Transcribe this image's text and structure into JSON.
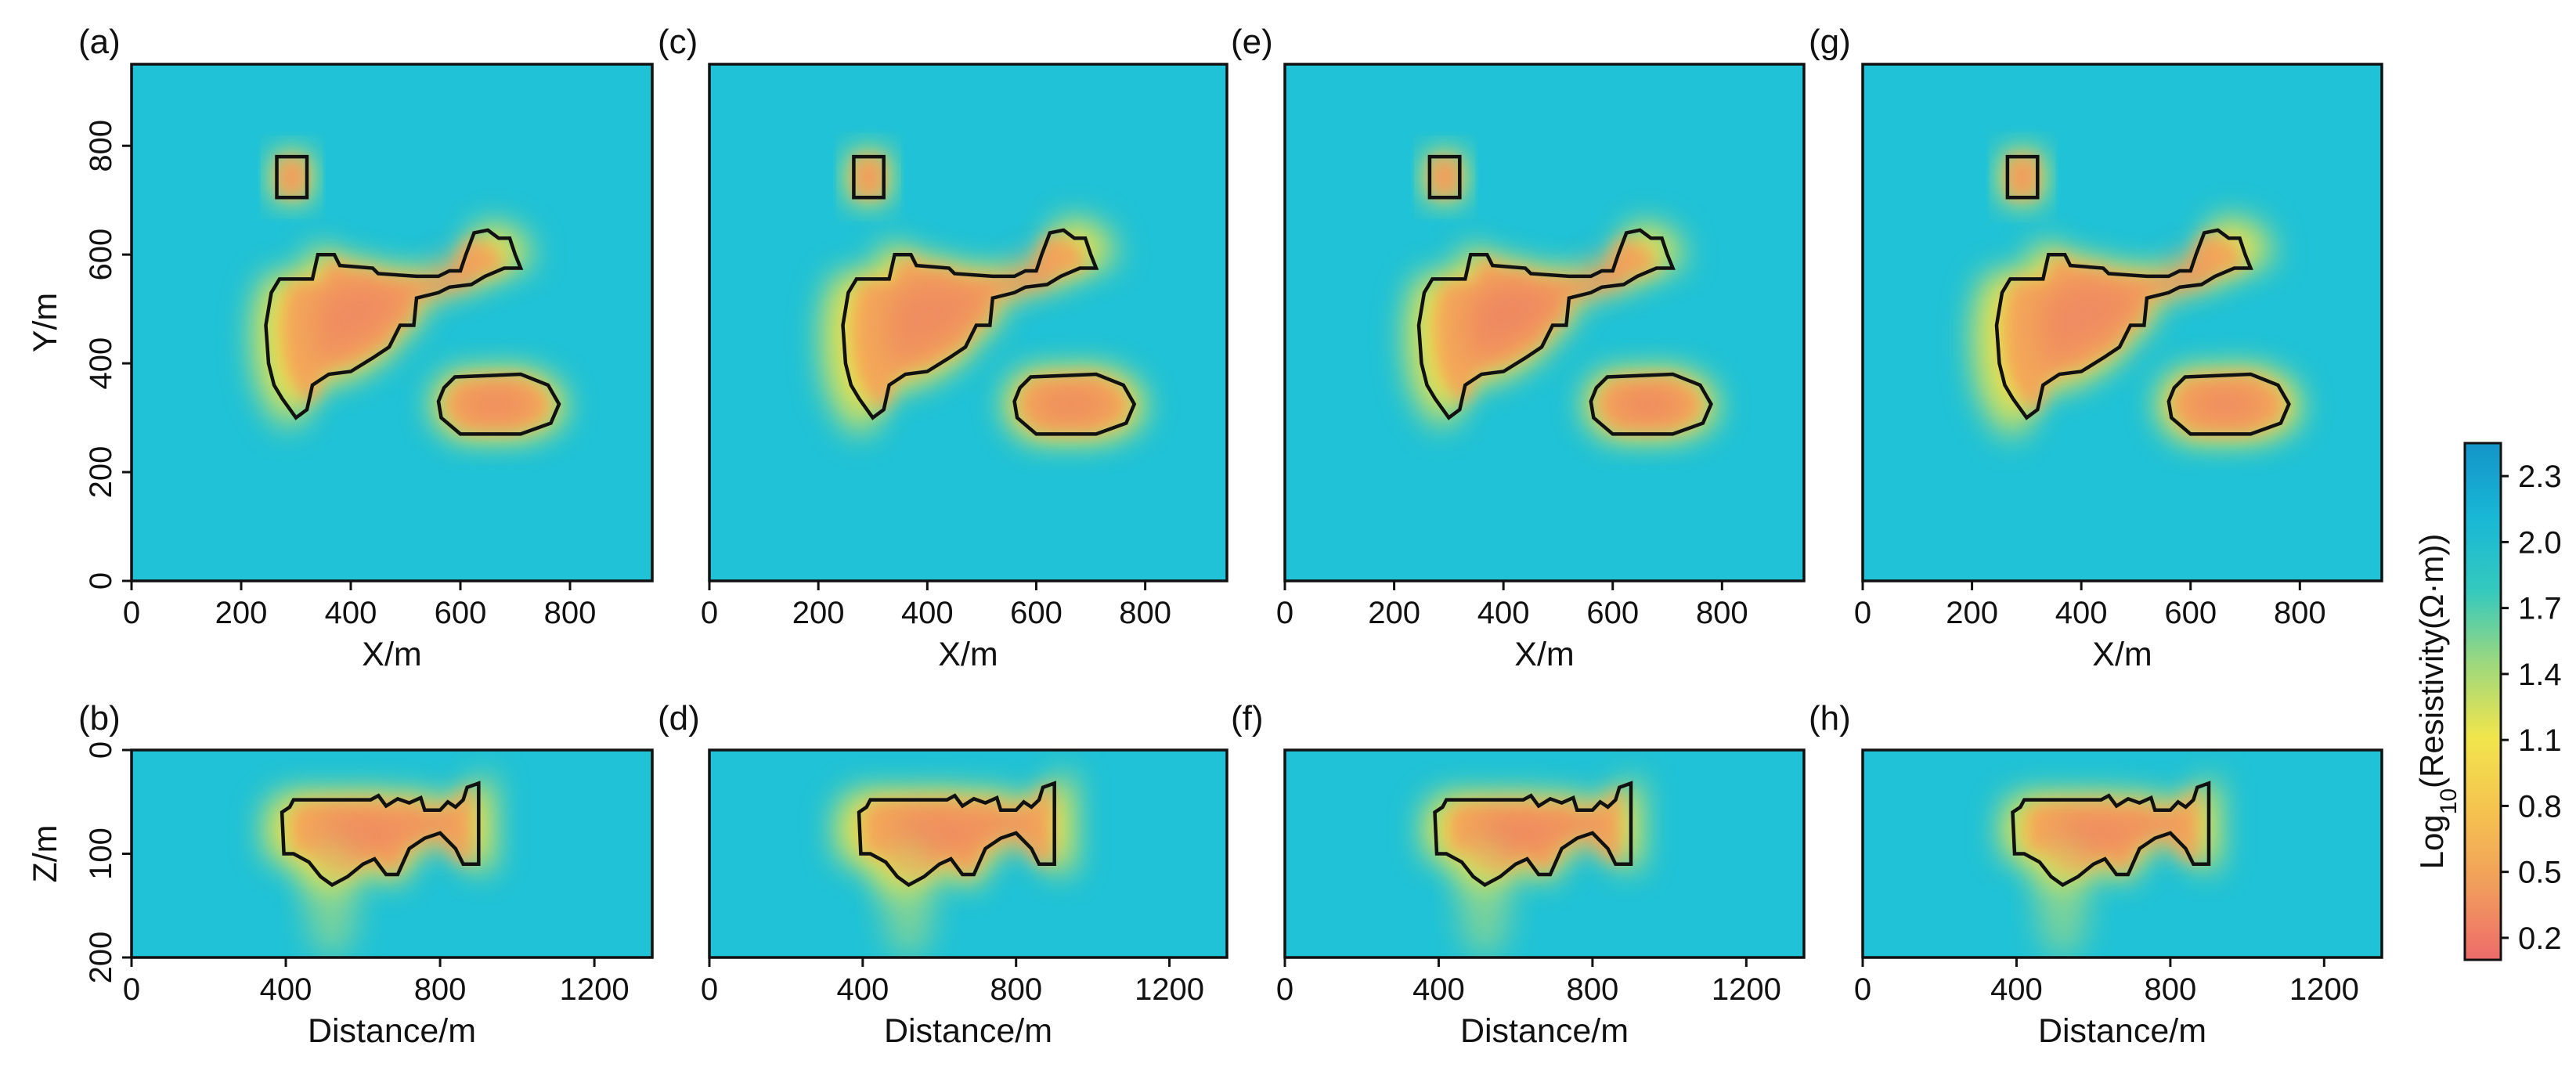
{
  "chart_data": [
    {
      "type": "heatmap",
      "panel": "(a)",
      "xlabel": "X/m",
      "ylabel": "Y/m",
      "xlim": [
        0,
        950
      ],
      "ylim": [
        0,
        950
      ],
      "xticks": [
        "0",
        "200",
        "400",
        "600",
        "800"
      ],
      "yticks": [
        "0",
        "200",
        "400",
        "600",
        "800"
      ],
      "scale": 1.0,
      "anomaly_hotness": 0.55
    },
    {
      "type": "heatmap",
      "panel": "(c)",
      "xlabel": "X/m",
      "ylabel": "",
      "xlim": [
        0,
        950
      ],
      "ylim": [
        0,
        950
      ],
      "xticks": [
        "0",
        "200",
        "400",
        "600",
        "800"
      ],
      "yticks": [],
      "scale": 1.06,
      "anomaly_hotness": 0.5
    },
    {
      "type": "heatmap",
      "panel": "(e)",
      "xlabel": "X/m",
      "ylabel": "",
      "xlim": [
        0,
        950
      ],
      "ylim": [
        0,
        950
      ],
      "xticks": [
        "0",
        "200",
        "400",
        "600",
        "800"
      ],
      "yticks": [],
      "scale": 1.0,
      "anomaly_hotness": 0.6
    },
    {
      "type": "heatmap",
      "panel": "(g)",
      "xlabel": "X/m",
      "ylabel": "",
      "xlim": [
        0,
        950
      ],
      "ylim": [
        0,
        950
      ],
      "xticks": [
        "0",
        "200",
        "400",
        "600",
        "800"
      ],
      "yticks": [],
      "scale": 1.08,
      "anomaly_hotness": 0.55
    },
    {
      "type": "heatmap",
      "panel": "(b)",
      "xlabel": "Distance/m",
      "ylabel": "Z/m",
      "xlim": [
        0,
        1350
      ],
      "ylim": [
        200,
        0
      ],
      "xticks": [
        "0",
        "400",
        "800",
        "1200"
      ],
      "yticks": [
        "0",
        "100",
        "200"
      ],
      "scale": 1.05,
      "anomaly_hotness": 0.55
    },
    {
      "type": "heatmap",
      "panel": "(d)",
      "xlabel": "Distance/m",
      "ylabel": "",
      "xlim": [
        0,
        1350
      ],
      "ylim": [
        200,
        0
      ],
      "xticks": [
        "0",
        "400",
        "800",
        "1200"
      ],
      "yticks": [],
      "scale": 1.1,
      "anomaly_hotness": 0.5
    },
    {
      "type": "heatmap",
      "panel": "(f)",
      "xlabel": "Distance/m",
      "ylabel": "",
      "xlim": [
        0,
        1350
      ],
      "ylim": [
        200,
        0
      ],
      "xticks": [
        "0",
        "400",
        "800",
        "1200"
      ],
      "yticks": [],
      "scale": 1.0,
      "anomaly_hotness": 0.6
    },
    {
      "type": "heatmap",
      "panel": "(h)",
      "xlabel": "Distance/m",
      "ylabel": "",
      "xlim": [
        0,
        1350
      ],
      "ylim": [
        200,
        0
      ],
      "xticks": [
        "0",
        "400",
        "800",
        "1200"
      ],
      "yticks": [],
      "scale": 1.0,
      "anomaly_hotness": 0.55
    }
  ],
  "anomalies_plan": {
    "small_block": [
      [
        265,
        780
      ],
      [
        320,
        780
      ],
      [
        320,
        705
      ],
      [
        265,
        705
      ]
    ],
    "main_body": [
      [
        255,
        530
      ],
      [
        270,
        555
      ],
      [
        330,
        555
      ],
      [
        340,
        600
      ],
      [
        370,
        600
      ],
      [
        380,
        580
      ],
      [
        440,
        575
      ],
      [
        450,
        565
      ],
      [
        520,
        560
      ],
      [
        560,
        560
      ],
      [
        580,
        570
      ],
      [
        600,
        570
      ],
      [
        610,
        600
      ],
      [
        625,
        640
      ],
      [
        650,
        645
      ],
      [
        670,
        630
      ],
      [
        690,
        630
      ],
      [
        700,
        600
      ],
      [
        710,
        575
      ],
      [
        680,
        575
      ],
      [
        645,
        560
      ],
      [
        620,
        545
      ],
      [
        580,
        540
      ],
      [
        560,
        530
      ],
      [
        520,
        520
      ],
      [
        515,
        470
      ],
      [
        490,
        470
      ],
      [
        470,
        430
      ],
      [
        440,
        410
      ],
      [
        400,
        385
      ],
      [
        360,
        380
      ],
      [
        330,
        360
      ],
      [
        320,
        315
      ],
      [
        300,
        300
      ],
      [
        275,
        335
      ],
      [
        260,
        360
      ],
      [
        250,
        400
      ],
      [
        245,
        470
      ]
    ],
    "ellipse": [
      [
        570,
        355
      ],
      [
        590,
        375
      ],
      [
        710,
        380
      ],
      [
        760,
        360
      ],
      [
        780,
        325
      ],
      [
        765,
        290
      ],
      [
        710,
        270
      ],
      [
        600,
        270
      ],
      [
        565,
        300
      ],
      [
        560,
        330
      ]
    ]
  },
  "anomalies_section": {
    "body": [
      [
        390,
        60
      ],
      [
        410,
        55
      ],
      [
        420,
        48
      ],
      [
        620,
        48
      ],
      [
        640,
        44
      ],
      [
        660,
        54
      ],
      [
        690,
        47
      ],
      [
        720,
        51
      ],
      [
        750,
        46
      ],
      [
        760,
        58
      ],
      [
        800,
        58
      ],
      [
        820,
        50
      ],
      [
        840,
        55
      ],
      [
        860,
        48
      ],
      [
        870,
        36
      ],
      [
        900,
        32
      ],
      [
        900,
        110
      ],
      [
        860,
        110
      ],
      [
        840,
        95
      ],
      [
        800,
        80
      ],
      [
        760,
        85
      ],
      [
        720,
        95
      ],
      [
        690,
        120
      ],
      [
        660,
        120
      ],
      [
        630,
        105
      ],
      [
        600,
        110
      ],
      [
        560,
        122
      ],
      [
        520,
        130
      ],
      [
        490,
        122
      ],
      [
        460,
        108
      ],
      [
        420,
        100
      ],
      [
        395,
        100
      ]
    ]
  },
  "colorbar": {
    "title_prefix": "Log",
    "title_sub": "10",
    "title_suffix": "(Resistivity(Ω·m))",
    "ticks": [
      "0.2",
      "0.5",
      "0.8",
      "1.1",
      "1.4",
      "1.7",
      "2.0",
      "2.3"
    ],
    "range": [
      0.1,
      2.45
    ],
    "colors": [
      "#ee6b6b",
      "#f19d5c",
      "#f5c24f",
      "#f2e54c",
      "#9fd87c",
      "#34c9be",
      "#18b7d6",
      "#1494c9"
    ]
  }
}
